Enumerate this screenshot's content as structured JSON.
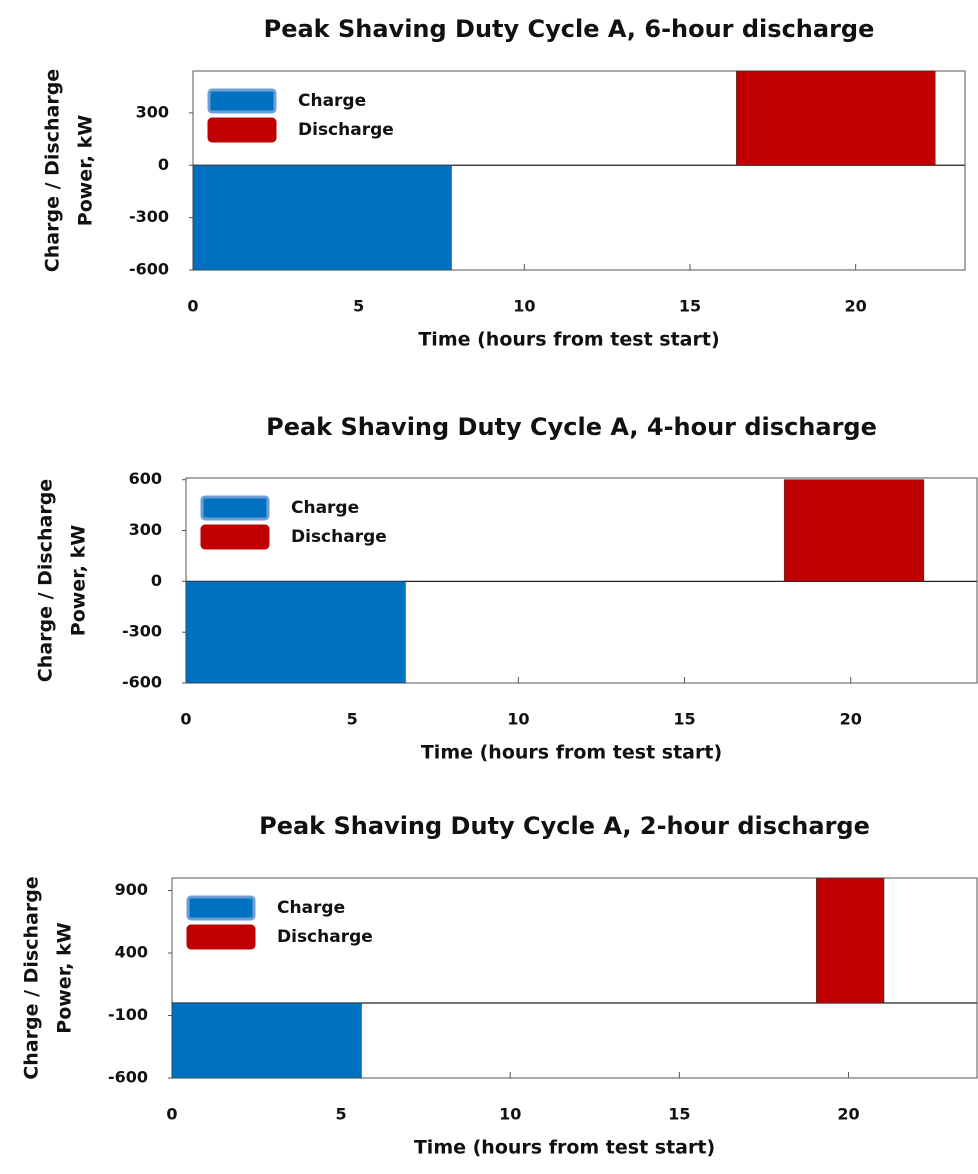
{
  "chart_data": [
    {
      "type": "bar",
      "title": "Peak Shaving Duty Cycle A, 6-hour discharge",
      "xlabel": "Time (hours from test start)",
      "ylabel": [
        "Charge  / Discharge",
        "Power, kW"
      ],
      "xlim": [
        0,
        23.3
      ],
      "xticks": [
        0,
        5,
        10,
        15,
        20
      ],
      "ylim": [
        -600,
        540
      ],
      "yticks": [
        -600,
        -300,
        0,
        300
      ],
      "legend": "upper left",
      "series": [
        {
          "name": "Charge",
          "color": "#0070c0",
          "x_start": [
            0
          ],
          "x_end": [
            7.8
          ],
          "values": [
            -600
          ]
        },
        {
          "name": "Discharge",
          "color": "#c00000",
          "x_start": [
            16.4
          ],
          "x_end": [
            22.4
          ],
          "values": [
            540
          ]
        }
      ]
    },
    {
      "type": "bar",
      "title": "Peak Shaving Duty Cycle A, 4-hour discharge",
      "xlabel": "Time (hours from test start)",
      "ylabel": [
        "Charge  / Discharge",
        "Power, kW"
      ],
      "xlim": [
        0,
        23.8
      ],
      "xticks": [
        0,
        5,
        10,
        15,
        20
      ],
      "ylim": [
        -600,
        610
      ],
      "yticks": [
        -600,
        -300,
        0,
        300,
        600
      ],
      "legend": "upper left",
      "series": [
        {
          "name": "Charge",
          "color": "#0070c0",
          "x_start": [
            0
          ],
          "x_end": [
            6.6
          ],
          "values": [
            -600
          ]
        },
        {
          "name": "Discharge",
          "color": "#c00000",
          "x_start": [
            18
          ],
          "x_end": [
            22.2
          ],
          "values": [
            600
          ]
        }
      ]
    },
    {
      "type": "bar",
      "title": "Peak Shaving Duty Cycle A, 2-hour discharge",
      "xlabel": "Time (hours from test start)",
      "ylabel": [
        "Charge  / Discharge",
        "Power, kW"
      ],
      "xlim": [
        0,
        23.8
      ],
      "xticks": [
        0,
        5,
        10,
        15,
        20
      ],
      "ylim": [
        -600,
        1000
      ],
      "yticks": [
        -600,
        -100,
        400,
        900
      ],
      "legend": "upper left",
      "series": [
        {
          "name": "Charge",
          "color": "#0070c0",
          "x_start": [
            0
          ],
          "x_end": [
            5.6
          ],
          "values": [
            -600
          ]
        },
        {
          "name": "Discharge",
          "color": "#c00000",
          "x_start": [
            19.05
          ],
          "x_end": [
            21.05
          ],
          "values": [
            1000
          ]
        }
      ]
    }
  ]
}
